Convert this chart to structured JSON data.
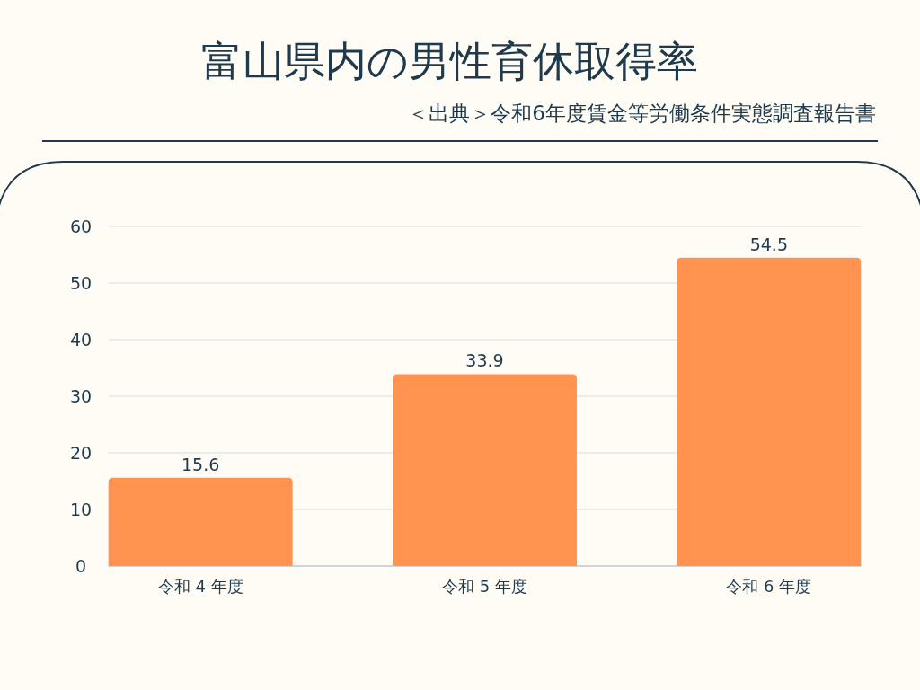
{
  "chart_data": {
    "type": "bar",
    "title": "富山県内の男性育休取得率",
    "annotations": [
      "＜出典＞令和6年度賃金等労働条件実態調査報告書"
    ],
    "categories": [
      "令和 4 年度",
      "令和 5 年度",
      "令和 6 年度"
    ],
    "values": [
      15.6,
      33.9,
      54.5
    ],
    "color": "#ff934f",
    "ylim": [
      0,
      60
    ],
    "yticks": [
      0,
      10,
      20,
      30,
      40,
      50,
      60
    ],
    "grid": "y",
    "data_labels": true
  }
}
